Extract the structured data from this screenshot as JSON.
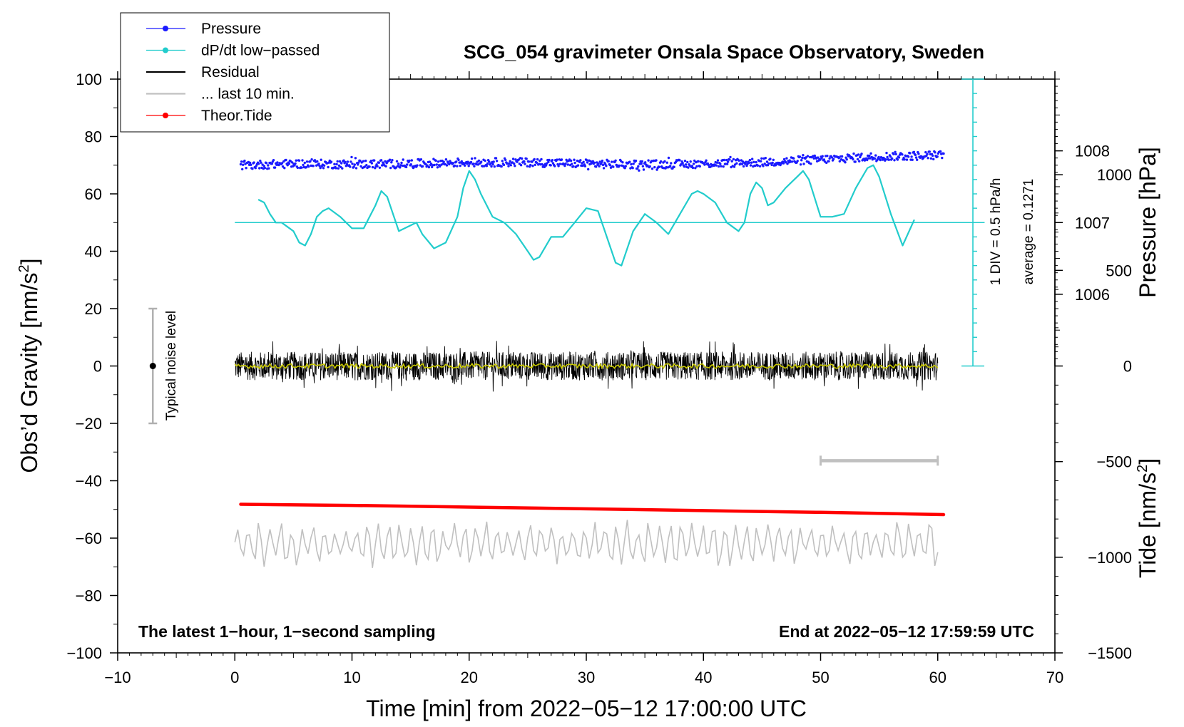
{
  "chart_data": {
    "type": "line",
    "title": "SCG_054 gravimeter Onsala Space Observatory, Sweden",
    "xlabel": "Time [min] from 2022−05−12 17:00:00 UTC",
    "ylabel": "Obs’d Gravity [nm/s",
    "ylabel_sup": "2",
    "ylabel_end": "]",
    "pressure_axis_label": "Pressure [hPa]",
    "tide_axis_label": "Tide [nm/s",
    "tide_axis_sup": "2",
    "tide_axis_end": "]",
    "xlim": [
      -10,
      70
    ],
    "ylim": [
      -100,
      100
    ],
    "x_ticks": [
      -10,
      0,
      10,
      20,
      30,
      40,
      50,
      60,
      70
    ],
    "x_tick_labels": [
      "−10",
      "0",
      "10",
      "20",
      "30",
      "40",
      "50",
      "60",
      "70"
    ],
    "y_ticks": [
      100,
      80,
      60,
      40,
      20,
      0,
      -20,
      -40,
      -60,
      -80,
      -100
    ],
    "y_tick_labels": [
      "100",
      "80",
      "60",
      "40",
      "20",
      "0",
      "−20",
      "−40",
      "−60",
      "−80",
      "−100"
    ],
    "pressure_axis": {
      "ticks": [
        1008,
        1007,
        1006
      ],
      "tick_labels": [
        "1008",
        "1007",
        "1006"
      ],
      "gravity_equiv": [
        75,
        50,
        25
      ]
    },
    "tide_axis": {
      "ticks": [
        1000,
        500,
        0,
        -500,
        -1000,
        -1500
      ],
      "tick_labels": [
        "1000",
        "500",
        "0",
        "−500",
        "−1000",
        "−1500"
      ],
      "range": [
        -1500,
        1500
      ]
    },
    "legend": [
      {
        "label": "Pressure",
        "color": "#1a1aff",
        "marker": "dot"
      },
      {
        "label": "dP/dt low−passed",
        "color": "#22cccc",
        "marker": "dot"
      },
      {
        "label": "Residual",
        "color": "#000000",
        "marker": "none"
      },
      {
        "label": "... last 10 min.",
        "color": "#c0c0c0",
        "marker": "none"
      },
      {
        "label": "Theor.Tide",
        "color": "#ff0000",
        "marker": "dot"
      }
    ],
    "annotations": {
      "bottom_left": "The latest 1−hour, 1−second sampling",
      "bottom_right": "End at 2022−05−12 17:59:59 UTC",
      "scale_div": "1 DIV = 0.5 hPa/h",
      "scale_avg": "average = 0.1271",
      "noise_label": "Typical noise level"
    },
    "noise_bar": {
      "x": -7,
      "y_low": -20,
      "y_high": 20,
      "center": 0
    },
    "ten_min_bar": {
      "x_start": 50,
      "x_end": 60,
      "y": -33
    },
    "dpdt_baseline": {
      "y": 50,
      "x_start": 0,
      "x_end": 64
    },
    "scale_bar": {
      "x": 63,
      "y_low": 0,
      "y_high": 100
    },
    "series": [
      {
        "name": "Pressure",
        "color": "#1a1aff",
        "x": [
          0.5,
          5,
          10,
          15,
          20,
          25,
          30,
          35,
          40,
          45,
          50,
          55,
          60.5
        ],
        "y": [
          70,
          70.5,
          70.3,
          70.5,
          71,
          71,
          70.5,
          70.2,
          70.5,
          71,
          72,
          73,
          73.5
        ],
        "noise_amplitude": 1.5
      },
      {
        "name": "dP/dt low−passed",
        "color": "#22cccc",
        "x": [
          2,
          2.5,
          3,
          3.5,
          4,
          5,
          5.5,
          6,
          6.5,
          7,
          7.5,
          8,
          9,
          10,
          11,
          12,
          12.5,
          13,
          14,
          15,
          15.5,
          16,
          17,
          18,
          19,
          19.5,
          20,
          20.5,
          21,
          22,
          23,
          24,
          25,
          25.5,
          26,
          27,
          28,
          29,
          30,
          31,
          32,
          32.5,
          33,
          34,
          35,
          36,
          37,
          38,
          39,
          39.5,
          40,
          41,
          42,
          43,
          43.5,
          44,
          44.5,
          45,
          45.5,
          46,
          47,
          48,
          48.5,
          49,
          50,
          51,
          52,
          53,
          54,
          54.5,
          55,
          56,
          57,
          58
        ],
        "y": [
          58,
          57,
          53,
          50,
          50,
          47,
          43,
          42,
          46,
          52,
          54,
          55,
          52,
          48,
          48,
          56,
          61,
          59,
          47,
          49,
          50,
          46,
          41,
          43,
          52,
          62,
          68,
          65,
          60,
          52,
          50,
          46,
          40,
          37,
          38,
          45,
          45,
          50,
          55,
          54,
          42,
          36,
          35,
          47,
          53,
          50,
          46,
          53,
          60,
          61,
          60,
          57,
          50,
          47,
          50,
          60,
          64,
          62,
          56,
          57,
          62,
          66,
          68,
          65,
          52,
          52,
          53,
          62,
          69,
          70,
          66,
          53,
          42,
          51
        ]
      },
      {
        "name": "Residual",
        "color": "#000000",
        "x_start": 0,
        "x_end": 60,
        "center": 0,
        "noise_amplitude": 5,
        "smoothed_color": "#c8c800"
      },
      {
        "name": "Theor.Tide",
        "color": "#ff0000",
        "x": [
          0.5,
          10,
          20,
          30,
          40,
          50,
          60.5
        ],
        "y": [
          -48.2,
          -48.6,
          -49.2,
          -49.8,
          -50.4,
          -51.0,
          -51.8
        ]
      },
      {
        "name": "... last 10 min.",
        "color": "#c0c0c0",
        "x_start": 0,
        "x_end": 60,
        "center": -62,
        "noise_amplitude": 8
      }
    ]
  }
}
